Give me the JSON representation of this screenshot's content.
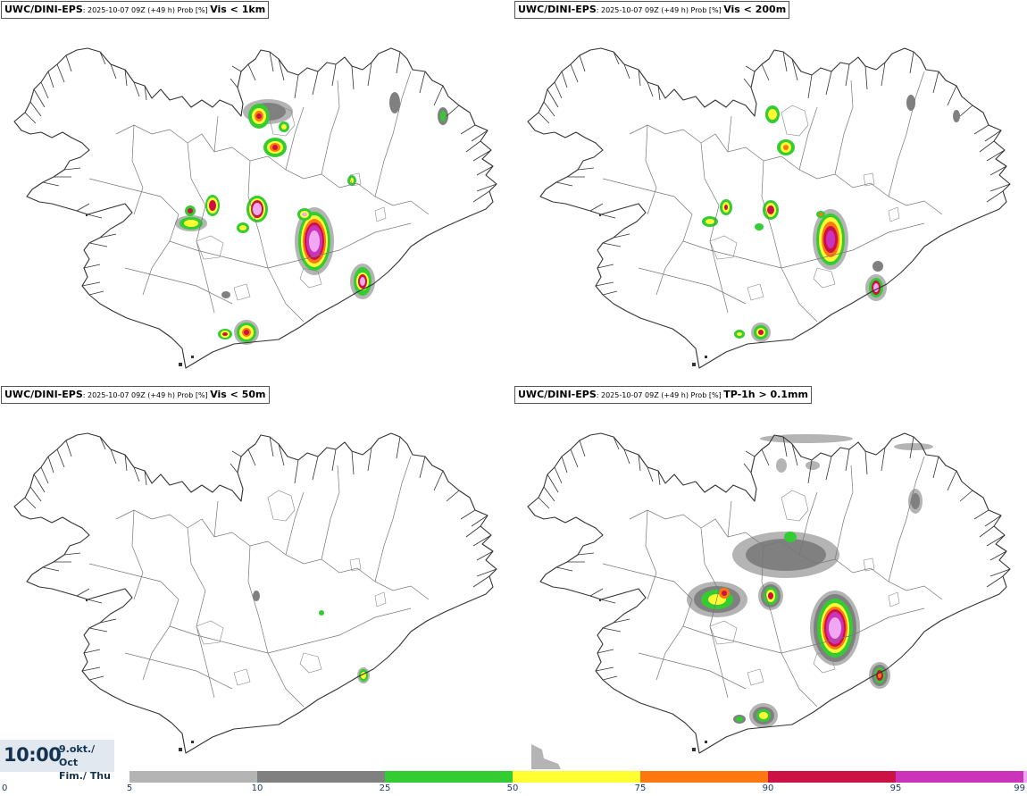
{
  "panels": [
    {
      "source": "UWC/DINI-EPS",
      "subtitle": ": 2025-10-07 09Z (+49 h) Prob [%] ",
      "field": "Vis < 1km"
    },
    {
      "source": "UWC/DINI-EPS",
      "subtitle": ": 2025-10-07 09Z (+49 h) Prob [%] ",
      "field": "Vis < 200m"
    },
    {
      "source": "UWC/DINI-EPS",
      "subtitle": ": 2025-10-07 09Z (+49 h) Prob [%] ",
      "field": "Vis < 50m"
    },
    {
      "source": "UWC/DINI-EPS",
      "subtitle": ": 2025-10-07 09Z (+49 h) Prob [%] ",
      "field": "TP-1h > 0.1mm"
    }
  ],
  "clock": {
    "time": "10:00",
    "date_line1": "9.okt./ Oct",
    "date_line2": "Fim./ Thu"
  },
  "legend": {
    "ticks": [
      "0",
      "5",
      "10",
      "25",
      "50",
      "75",
      "90",
      "95",
      "99"
    ],
    "bins": [
      {
        "from": 5,
        "to": 10,
        "color": "#b4b4b4"
      },
      {
        "from": 10,
        "to": 25,
        "color": "#808080"
      },
      {
        "from": 25,
        "to": 50,
        "color": "#33cc33"
      },
      {
        "from": 50,
        "to": 75,
        "color": "#ffff33"
      },
      {
        "from": 75,
        "to": 90,
        "color": "#ff7711"
      },
      {
        "from": 90,
        "to": 95,
        "color": "#cc1144"
      },
      {
        "from": 95,
        "to": 99,
        "color": "#cc33bb"
      },
      {
        "from": 99,
        "to": 100,
        "color": "#f0a8f0"
      }
    ]
  },
  "colors": {
    "coast": "#333333",
    "boundary": "#777777",
    "p5": "#b4b4b4",
    "p10": "#808080",
    "p25": "#33cc33",
    "p50": "#ffff33",
    "p75": "#ff7711",
    "p90": "#cc1144",
    "p95": "#cc33bb",
    "p99": "#f0a8f0"
  }
}
